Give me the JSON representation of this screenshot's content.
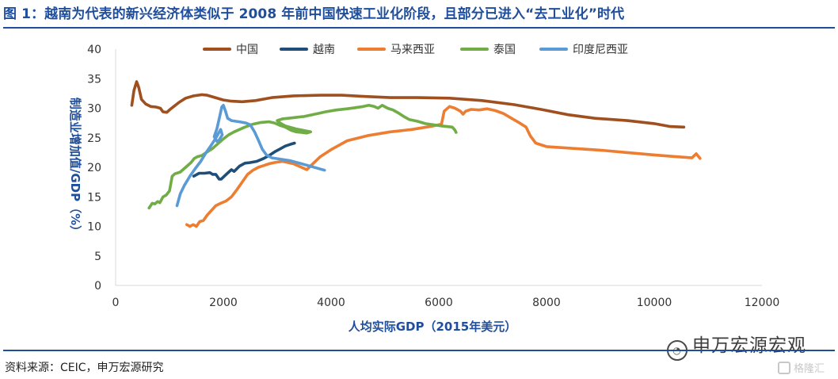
{
  "figure": {
    "title": "图 1：越南为代表的新兴经济体类似于 2008 年前中国快速工业化阶段，且部分已进入“去工业化”时代",
    "source": "资料来源：CEIC，申万宏源研究",
    "watermark": "申万宏源宏观",
    "watermark_icon": "wechat-icon",
    "watermark2": "格隆汇"
  },
  "chart_data": {
    "type": "line",
    "xlabel": "人均实际GDP（2015年美元）",
    "ylabel": "制造业增加值/GDP（%）",
    "xlim": [
      0,
      12000
    ],
    "ylim": [
      0,
      40
    ],
    "xticks": [
      0,
      2000,
      4000,
      6000,
      8000,
      10000,
      12000
    ],
    "yticks": [
      0,
      5,
      10,
      15,
      20,
      25,
      30,
      35,
      40
    ],
    "grid": false,
    "legend_position": "top",
    "series": [
      {
        "name": "中国",
        "color": "#a0501e",
        "points": [
          [
            300,
            30.5
          ],
          [
            340,
            33
          ],
          [
            390,
            34.5
          ],
          [
            430,
            33.5
          ],
          [
            480,
            31.5
          ],
          [
            560,
            30.7
          ],
          [
            650,
            30.3
          ],
          [
            750,
            30.2
          ],
          [
            830,
            30.0
          ],
          [
            880,
            29.4
          ],
          [
            950,
            29.3
          ],
          [
            1010,
            29.8
          ],
          [
            1080,
            30.3
          ],
          [
            1180,
            31.0
          ],
          [
            1300,
            31.7
          ],
          [
            1450,
            32.1
          ],
          [
            1600,
            32.3
          ],
          [
            1700,
            32.2
          ],
          [
            1850,
            31.8
          ],
          [
            2000,
            31.4
          ],
          [
            2150,
            31.2
          ],
          [
            2350,
            31.1
          ],
          [
            2600,
            31.3
          ],
          [
            2900,
            31.8
          ],
          [
            3300,
            32.1
          ],
          [
            3800,
            32.2
          ],
          [
            4200,
            32.2
          ],
          [
            4600,
            32.0
          ],
          [
            5100,
            31.8
          ],
          [
            5600,
            31.8
          ],
          [
            6200,
            31.7
          ],
          [
            6800,
            31.3
          ],
          [
            7400,
            30.6
          ],
          [
            7900,
            29.8
          ],
          [
            8400,
            28.9
          ],
          [
            8900,
            28.3
          ],
          [
            9500,
            27.9
          ],
          [
            10000,
            27.4
          ],
          [
            10300,
            26.9
          ],
          [
            10550,
            26.8
          ]
        ]
      },
      {
        "name": "越南",
        "color": "#1f4e79",
        "points": [
          [
            1450,
            18.5
          ],
          [
            1550,
            19.0
          ],
          [
            1650,
            19.0
          ],
          [
            1750,
            19.1
          ],
          [
            1800,
            18.8
          ],
          [
            1860,
            18.8
          ],
          [
            1920,
            18.0
          ],
          [
            1960,
            18.0
          ],
          [
            2030,
            18.6
          ],
          [
            2100,
            19.2
          ],
          [
            2150,
            19.6
          ],
          [
            2200,
            19.3
          ],
          [
            2300,
            20.2
          ],
          [
            2400,
            20.7
          ],
          [
            2500,
            20.8
          ],
          [
            2620,
            21.0
          ],
          [
            2750,
            21.5
          ],
          [
            2850,
            22.0
          ],
          [
            2950,
            22.6
          ],
          [
            3050,
            23.1
          ],
          [
            3150,
            23.6
          ],
          [
            3250,
            23.9
          ],
          [
            3320,
            24.1
          ]
        ]
      },
      {
        "name": "马来西亚",
        "color": "#ed7d31",
        "points": [
          [
            1320,
            10.3
          ],
          [
            1380,
            10.0
          ],
          [
            1440,
            10.3
          ],
          [
            1500,
            10.0
          ],
          [
            1560,
            10.8
          ],
          [
            1630,
            11.0
          ],
          [
            1700,
            11.9
          ],
          [
            1780,
            12.7
          ],
          [
            1860,
            13.5
          ],
          [
            1950,
            13.9
          ],
          [
            2050,
            14.3
          ],
          [
            2150,
            15.0
          ],
          [
            2250,
            16.2
          ],
          [
            2350,
            17.5
          ],
          [
            2450,
            18.8
          ],
          [
            2550,
            19.5
          ],
          [
            2650,
            20.0
          ],
          [
            2750,
            20.3
          ],
          [
            2850,
            20.6
          ],
          [
            2950,
            20.8
          ],
          [
            3100,
            21.0
          ],
          [
            3300,
            20.6
          ],
          [
            3450,
            20.0
          ],
          [
            3550,
            19.6
          ],
          [
            3650,
            20.5
          ],
          [
            3800,
            21.8
          ],
          [
            4000,
            23.0
          ],
          [
            4300,
            24.5
          ],
          [
            4700,
            25.4
          ],
          [
            5100,
            26.0
          ],
          [
            5500,
            26.4
          ],
          [
            5900,
            27.0
          ],
          [
            6050,
            27.3
          ],
          [
            6100,
            29.5
          ],
          [
            6200,
            30.3
          ],
          [
            6300,
            30.0
          ],
          [
            6400,
            29.5
          ],
          [
            6450,
            29.0
          ],
          [
            6500,
            29.5
          ],
          [
            6600,
            29.8
          ],
          [
            6750,
            29.7
          ],
          [
            6900,
            29.9
          ],
          [
            7050,
            29.6
          ],
          [
            7200,
            29.1
          ],
          [
            7350,
            28.3
          ],
          [
            7500,
            27.5
          ],
          [
            7620,
            26.8
          ],
          [
            7700,
            25.3
          ],
          [
            7750,
            24.7
          ],
          [
            7800,
            24.1
          ],
          [
            8000,
            23.5
          ],
          [
            8500,
            23.2
          ],
          [
            9000,
            22.9
          ],
          [
            9500,
            22.5
          ],
          [
            10000,
            22.1
          ],
          [
            10400,
            21.8
          ],
          [
            10700,
            21.6
          ],
          [
            10780,
            22.3
          ],
          [
            10850,
            21.5
          ]
        ]
      },
      {
        "name": "泰国",
        "color": "#70ad47",
        "points": [
          [
            620,
            13.1
          ],
          [
            680,
            13.9
          ],
          [
            730,
            13.8
          ],
          [
            780,
            14.2
          ],
          [
            820,
            14.0
          ],
          [
            880,
            15.0
          ],
          [
            940,
            15.3
          ],
          [
            1000,
            16.0
          ],
          [
            1050,
            18.5
          ],
          [
            1100,
            18.9
          ],
          [
            1200,
            19.2
          ],
          [
            1300,
            20.0
          ],
          [
            1400,
            20.8
          ],
          [
            1460,
            21.5
          ],
          [
            1520,
            21.8
          ],
          [
            1600,
            22.0
          ],
          [
            1700,
            22.6
          ],
          [
            1800,
            23.2
          ],
          [
            1900,
            24.0
          ],
          [
            2000,
            24.8
          ],
          [
            2100,
            25.5
          ],
          [
            2200,
            26.0
          ],
          [
            2300,
            26.4
          ],
          [
            2400,
            26.8
          ],
          [
            2550,
            27.3
          ],
          [
            2700,
            27.6
          ],
          [
            2850,
            27.7
          ],
          [
            2950,
            27.5
          ],
          [
            3050,
            27.1
          ],
          [
            3150,
            26.8
          ],
          [
            3250,
            26.3
          ],
          [
            3350,
            26.0
          ],
          [
            3450,
            25.9
          ],
          [
            3550,
            25.8
          ],
          [
            3620,
            26.0
          ],
          [
            3350,
            26.5
          ],
          [
            3150,
            27.0
          ],
          [
            3050,
            27.5
          ],
          [
            3000,
            27.9
          ],
          [
            3100,
            28.2
          ],
          [
            3300,
            28.4
          ],
          [
            3500,
            28.6
          ],
          [
            3700,
            29.0
          ],
          [
            3900,
            29.4
          ],
          [
            4100,
            29.7
          ],
          [
            4300,
            29.9
          ],
          [
            4450,
            30.1
          ],
          [
            4600,
            30.3
          ],
          [
            4700,
            30.5
          ],
          [
            4800,
            30.3
          ],
          [
            4870,
            30.0
          ],
          [
            4950,
            30.5
          ],
          [
            5050,
            30.0
          ],
          [
            5150,
            29.7
          ],
          [
            5250,
            29.2
          ],
          [
            5350,
            28.6
          ],
          [
            5450,
            28.1
          ],
          [
            5600,
            27.8
          ],
          [
            5750,
            27.4
          ],
          [
            5900,
            27.2
          ],
          [
            6050,
            27.0
          ],
          [
            6150,
            26.9
          ],
          [
            6250,
            26.8
          ],
          [
            6300,
            26.3
          ],
          [
            6320,
            25.9
          ]
        ]
      },
      {
        "name": "印度尼西亚",
        "color": "#5b9bd5",
        "points": [
          [
            1140,
            13.5
          ],
          [
            1200,
            15.5
          ],
          [
            1280,
            17.0
          ],
          [
            1380,
            18.5
          ],
          [
            1480,
            19.8
          ],
          [
            1580,
            21.0
          ],
          [
            1680,
            22.5
          ],
          [
            1780,
            23.8
          ],
          [
            1850,
            24.8
          ],
          [
            1900,
            25.6
          ],
          [
            1950,
            26.4
          ],
          [
            1980,
            25.5
          ],
          [
            1920,
            24.6
          ],
          [
            1880,
            24.4
          ],
          [
            1830,
            25.2
          ],
          [
            1880,
            26.5
          ],
          [
            1930,
            28.5
          ],
          [
            1970,
            30.2
          ],
          [
            2000,
            30.5
          ],
          [
            2040,
            29.5
          ],
          [
            2080,
            28.3
          ],
          [
            2150,
            27.9
          ],
          [
            2300,
            27.7
          ],
          [
            2420,
            27.5
          ],
          [
            2500,
            27.2
          ],
          [
            2580,
            26.0
          ],
          [
            2650,
            24.6
          ],
          [
            2720,
            23.1
          ],
          [
            2800,
            22.1
          ],
          [
            2900,
            21.6
          ],
          [
            3050,
            21.4
          ],
          [
            3250,
            21.1
          ],
          [
            3450,
            20.6
          ],
          [
            3650,
            20.1
          ],
          [
            3800,
            19.7
          ],
          [
            3880,
            19.5
          ]
        ]
      }
    ]
  }
}
